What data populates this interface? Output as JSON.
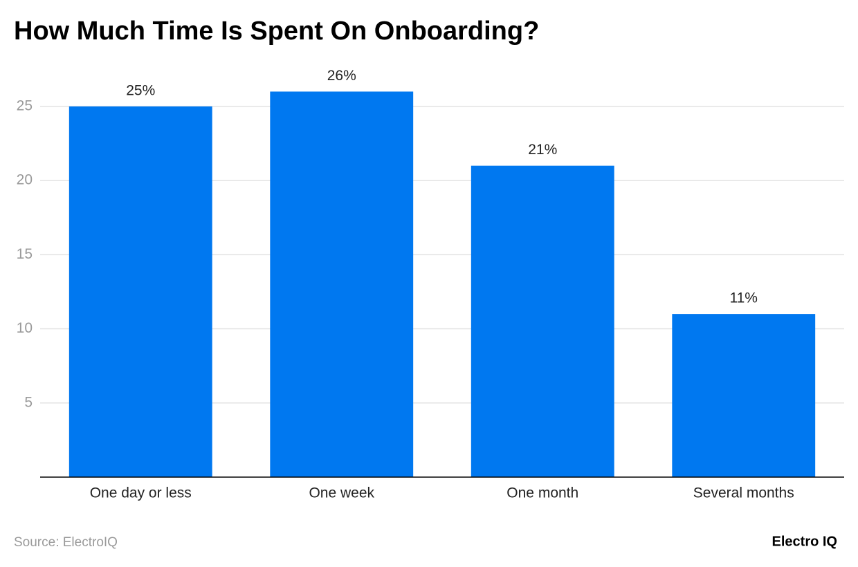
{
  "chart_data": {
    "type": "bar",
    "title": "How Much Time Is Spent On Onboarding?",
    "categories": [
      "One day or less",
      "One week",
      "One month",
      "Several months"
    ],
    "values": [
      25,
      26,
      21,
      11
    ],
    "value_labels": [
      "25%",
      "26%",
      "21%",
      "11%"
    ],
    "color": "#0078f0",
    "ylim": [
      0,
      27
    ],
    "yticks": [
      5,
      10,
      15,
      20,
      25
    ],
    "grid": true,
    "source": "Source: ElectroIQ",
    "brand": "Electro IQ"
  }
}
